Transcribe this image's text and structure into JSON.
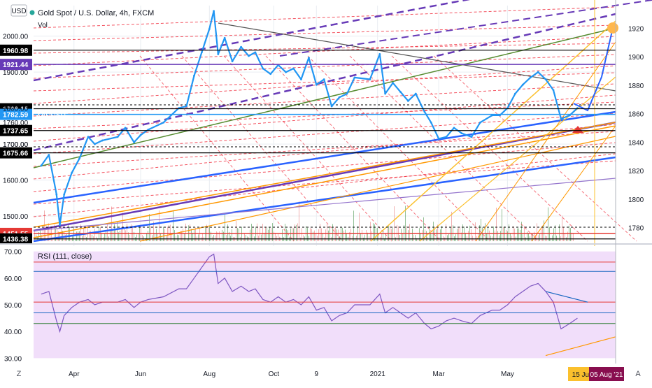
{
  "header": {
    "currency_badge": "USD",
    "symbol_title": "Gold Spot / U.S. Dollar, 4h, FXCM",
    "volume_label": "Vol"
  },
  "rsi": {
    "label": "RSI (111, close)"
  },
  "footer": {
    "left_icon": "Z",
    "right_icon": "A"
  },
  "colors": {
    "candle": "#2196f3",
    "volume_bar": "#2e7d32",
    "rsi_line": "#7e57c2",
    "rsi_band_fill": "#f1defa",
    "grid": "#e9edf2",
    "red_line": "#f23645",
    "purple_line": "#673ab7",
    "orange_line": "#ff9800",
    "yellow_line": "#fbc02d",
    "blue_line": "#2962ff"
  },
  "chart_data": [
    {
      "type": "line",
      "title": "Gold Spot / U.S. Dollar, 4h, FXCM",
      "series": [
        {
          "name": "XAUUSD",
          "x": [
            "2020-03-02",
            "2020-03-09",
            "2020-03-16",
            "2020-03-19",
            "2020-03-23",
            "2020-03-30",
            "2020-04-06",
            "2020-04-14",
            "2020-04-20",
            "2020-04-27",
            "2020-05-11",
            "2020-05-18",
            "2020-05-26",
            "2020-06-01",
            "2020-06-08",
            "2020-06-22",
            "2020-07-06",
            "2020-07-13",
            "2020-07-20",
            "2020-07-27",
            "2020-08-03",
            "2020-08-07",
            "2020-08-11",
            "2020-08-17",
            "2020-08-24",
            "2020-09-01",
            "2020-09-08",
            "2020-09-14",
            "2020-09-21",
            "2020-09-28",
            "2020-10-05",
            "2020-10-12",
            "2020-10-19",
            "2020-10-26",
            "2020-11-02",
            "2020-11-09",
            "2020-11-16",
            "2020-11-23",
            "2020-11-30",
            "2020-12-07",
            "2020-12-14",
            "2020-12-28",
            "2021-01-06",
            "2021-01-11",
            "2021-01-18",
            "2021-01-25",
            "2021-02-01",
            "2021-02-08",
            "2021-02-16",
            "2021-02-22",
            "2021-03-01",
            "2021-03-08",
            "2021-03-15",
            "2021-03-22",
            "2021-03-31",
            "2021-04-08",
            "2021-04-19",
            "2021-04-26",
            "2021-05-03",
            "2021-05-10",
            "2021-05-17",
            "2021-05-24",
            "2021-05-31",
            "2021-06-07",
            "2021-06-14",
            "2021-06-21",
            "2021-06-29",
            "2021-07-06"
          ],
          "values": [
            1640,
            1670,
            1560,
            1475,
            1560,
            1620,
            1660,
            1720,
            1700,
            1710,
            1720,
            1745,
            1705,
            1725,
            1740,
            1760,
            1800,
            1805,
            1890,
            1955,
            2020,
            2070,
            1950,
            1995,
            1930,
            1970,
            1945,
            1955,
            1910,
            1895,
            1920,
            1900,
            1910,
            1880,
            1940,
            1865,
            1880,
            1805,
            1830,
            1840,
            1885,
            1880,
            1950,
            1840,
            1870,
            1845,
            1820,
            1840,
            1790,
            1760,
            1715,
            1720,
            1745,
            1730,
            1720,
            1760,
            1780,
            1780,
            1800,
            1840,
            1865,
            1885,
            1900,
            1880,
            1850,
            1770,
            1780,
            1800
          ]
        }
      ],
      "y_axis_ticks": [
        "1500.00",
        "1600.00",
        "1700.00",
        "1800.00",
        "1900.00",
        "2000.00"
      ],
      "secondary_y_axis_ticks": [
        "1780",
        "1800",
        "1820",
        "1840",
        "1860",
        "1880",
        "1900",
        "1920"
      ],
      "x_axis_ticks": [
        "Apr",
        "Jun",
        "Aug",
        "Oct",
        "9",
        "2021",
        "Mar",
        "May"
      ],
      "x_axis_highlight_labels": [
        {
          "text": "15 Jul",
          "color": "#fbc02d"
        },
        {
          "text": "05 Aug '21",
          "color": "#880e4f"
        }
      ],
      "horizontal_levels": [
        {
          "label": "1960.98",
          "value": 1960.98,
          "color": "#000000"
        },
        {
          "label": "1921.44",
          "value": 1921.44,
          "color": "#673ab7"
        },
        {
          "label": "1798.15",
          "value": 1798.15,
          "color": "#000000"
        },
        {
          "label": "1782.59",
          "value": 1782.59,
          "color": "#2196f3",
          "series": "XAUUSD"
        },
        {
          "label": "1737.65",
          "value": 1737.65,
          "color": "#000000"
        },
        {
          "label": "1675.66",
          "value": 1675.66,
          "color": "#000000"
        },
        {
          "label": "1451.55",
          "value": 1451.55,
          "color": "#e53935"
        },
        {
          "label": "1436.38",
          "value": 1436.38,
          "color": "#000000"
        }
      ],
      "price_badges": [
        {
          "text": "1760.00",
          "color": "#ffffff"
        },
        {
          "text": "1700.00",
          "color": "#ffffff"
        }
      ],
      "grid": true
    },
    {
      "type": "line",
      "title": "RSI (111, close)",
      "series": [
        {
          "name": "RSI",
          "values": [
            54,
            55,
            44,
            40,
            46,
            49,
            51,
            52,
            50,
            51,
            51,
            52,
            49,
            51,
            52,
            53,
            56,
            56,
            60,
            64,
            68,
            69,
            58,
            60,
            55,
            57,
            55,
            56,
            52,
            51,
            53,
            51,
            52,
            50,
            53,
            48,
            49,
            44,
            46,
            47,
            50,
            50,
            54,
            47,
            49,
            47,
            45,
            47,
            43,
            41,
            42,
            44,
            45,
            44,
            43,
            46,
            48,
            48,
            50,
            53,
            55,
            57,
            58,
            55,
            51,
            41,
            43,
            45
          ]
        }
      ],
      "y_axis_ticks": [
        "30.00",
        "40.00",
        "50.00",
        "60.00",
        "70.00"
      ],
      "ylim": [
        28,
        72
      ],
      "band": [
        30,
        70
      ],
      "grid": true
    }
  ]
}
